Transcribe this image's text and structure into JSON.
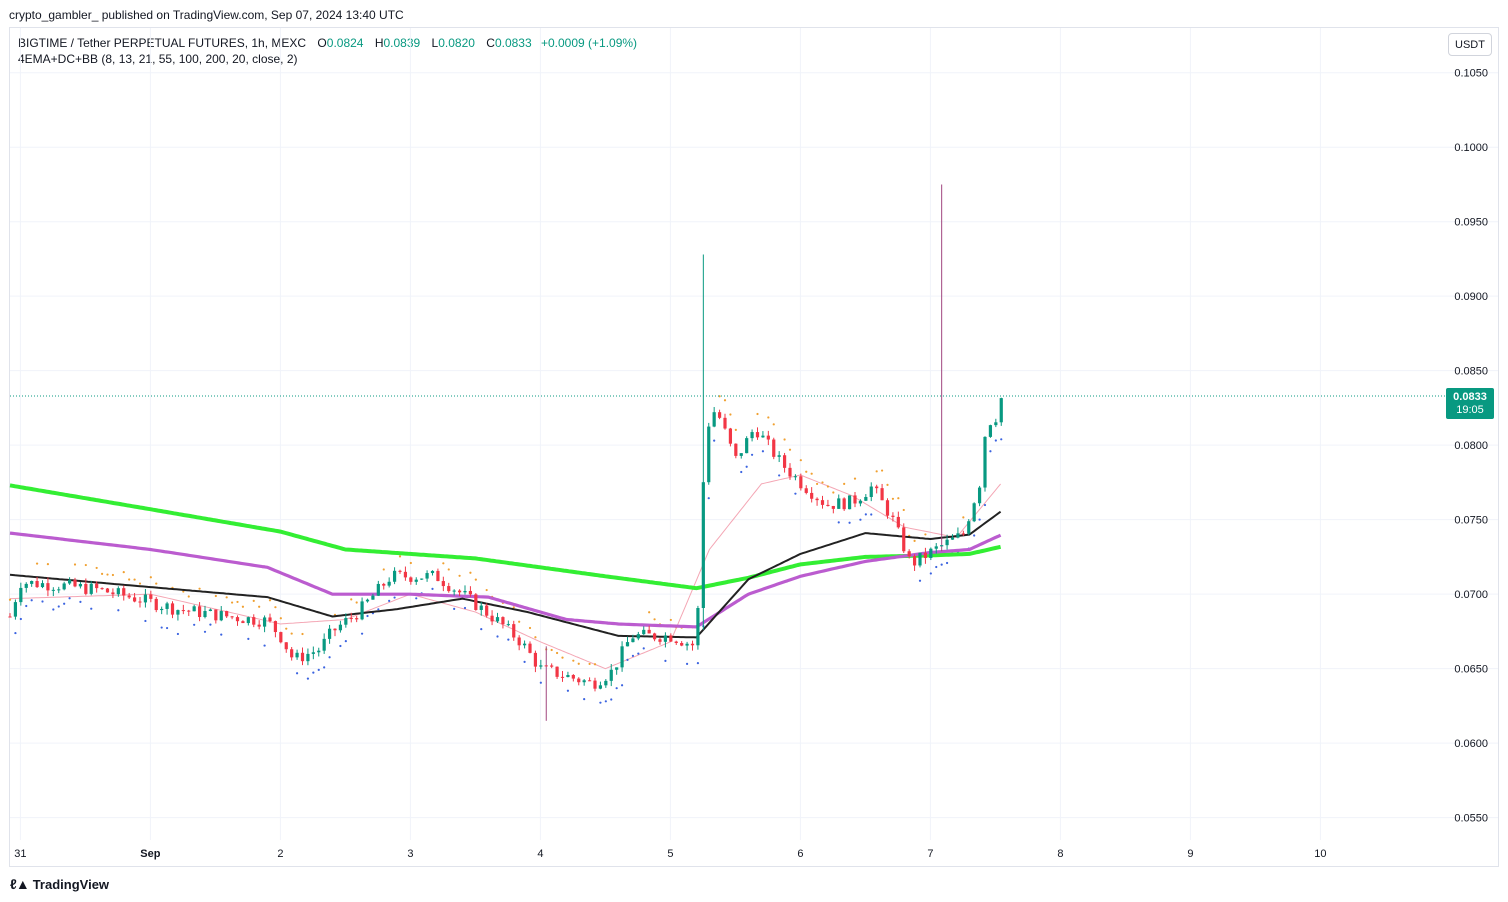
{
  "header": {
    "published": "crypto_gambler_ published on TradingView.com, Sep 07, 2024 13:40 UTC"
  },
  "legend": {
    "symbol": "BIGTIME / Tether PERPETUAL FUTURES, 1h, MEXC",
    "open_label": "O",
    "open": "0.0824",
    "high_label": "H",
    "high": "0.0839",
    "low_label": "L",
    "low": "0.0820",
    "close_label": "C",
    "close": "0.0833",
    "change": "+0.0009 (+1.09%)",
    "indicator": "4EMA+DC+BB (8, 13, 21, 55, 100, 200, 20, close, 2)"
  },
  "currency_button": "USDT",
  "price_label": {
    "price": "0.0833",
    "countdown": "19:05",
    "color": "#089981"
  },
  "footer": {
    "brand": "TradingView"
  },
  "colors": {
    "up": "#089981",
    "down": "#f23645",
    "ema200": "#33ee33",
    "ema100": "#bb5ccf",
    "ema55": "#222222",
    "bb": "#f4a6b4",
    "dc_up": "#3b63e0",
    "dc_dn": "#f0a030",
    "grid": "#f0f3fa",
    "current_line": "#089981"
  },
  "chart_data": {
    "type": "candlestick",
    "y_axis": {
      "range": [
        0.0535,
        0.108
      ],
      "ticks": [
        "0.1050",
        "0.1000",
        "0.0950",
        "0.0900",
        "0.0850",
        "0.0800",
        "0.0750",
        "0.0700",
        "0.0650",
        "0.0600",
        "0.0550"
      ]
    },
    "x_axis": {
      "unit": "days since Aug 30 2024 00:00",
      "range": [
        0.92,
        11.92
      ],
      "ticks": [
        {
          "t": 1.0,
          "label": "31"
        },
        {
          "t": 2.0,
          "label": "Sep"
        },
        {
          "t": 3.0,
          "label": "2"
        },
        {
          "t": 4.0,
          "label": "3"
        },
        {
          "t": 5.0,
          "label": "4"
        },
        {
          "t": 6.0,
          "label": "5"
        },
        {
          "t": 7.0,
          "label": "6"
        },
        {
          "t": 8.0,
          "label": "7"
        },
        {
          "t": 9.0,
          "label": "8"
        },
        {
          "t": 10.0,
          "label": "9"
        },
        {
          "t": 11.0,
          "label": "10"
        }
      ]
    },
    "price_path": [
      [
        0.92,
        0.0685
      ],
      [
        1.0,
        0.0708
      ],
      [
        1.3,
        0.0706
      ],
      [
        1.6,
        0.0703
      ],
      [
        1.9,
        0.0697
      ],
      [
        2.2,
        0.069
      ],
      [
        2.6,
        0.0685
      ],
      [
        2.9,
        0.0682
      ],
      [
        3.0,
        0.0672
      ],
      [
        3.1,
        0.0656
      ],
      [
        3.3,
        0.0663
      ],
      [
        3.4,
        0.0675
      ],
      [
        3.6,
        0.0688
      ],
      [
        3.85,
        0.0712
      ],
      [
        4.0,
        0.0712
      ],
      [
        4.2,
        0.0712
      ],
      [
        4.4,
        0.07
      ],
      [
        4.55,
        0.069
      ],
      [
        4.7,
        0.068
      ],
      [
        4.85,
        0.0668
      ],
      [
        5.0,
        0.065
      ],
      [
        5.2,
        0.0645
      ],
      [
        5.4,
        0.064
      ],
      [
        5.55,
        0.0648
      ],
      [
        5.7,
        0.0672
      ],
      [
        6.0,
        0.0672
      ],
      [
        6.2,
        0.0665
      ],
      [
        6.27,
        0.081
      ],
      [
        6.35,
        0.0825
      ],
      [
        6.5,
        0.079
      ],
      [
        6.65,
        0.0812
      ],
      [
        6.85,
        0.0788
      ],
      [
        7.0,
        0.0775
      ],
      [
        7.2,
        0.076
      ],
      [
        7.4,
        0.0762
      ],
      [
        7.55,
        0.0772
      ],
      [
        7.7,
        0.0752
      ],
      [
        7.85,
        0.072
      ],
      [
        8.0,
        0.0728
      ],
      [
        8.1,
        0.0733
      ],
      [
        8.25,
        0.074
      ],
      [
        8.38,
        0.0775
      ],
      [
        8.43,
        0.0815
      ],
      [
        8.5,
        0.0818
      ],
      [
        8.55,
        0.0833
      ]
    ],
    "wicks": [
      {
        "t": 6.25,
        "high": 0.0928,
        "low": 0.0676,
        "dir": "up"
      },
      {
        "t": 8.1,
        "high": 0.0975,
        "low": 0.073,
        "dir": "down"
      },
      {
        "t": 5.05,
        "high": 0.0665,
        "low": 0.0615,
        "dir": "down"
      }
    ],
    "series": [
      {
        "name": "EMA 200",
        "color": "#33ee33",
        "points": [
          [
            0.92,
            0.0773
          ],
          [
            2.0,
            0.0757
          ],
          [
            3.0,
            0.0742
          ],
          [
            3.5,
            0.073
          ],
          [
            4.5,
            0.0724
          ],
          [
            5.5,
            0.0712
          ],
          [
            6.2,
            0.0704
          ],
          [
            6.6,
            0.0711
          ],
          [
            7.0,
            0.072
          ],
          [
            7.5,
            0.0725
          ],
          [
            8.0,
            0.0726
          ],
          [
            8.3,
            0.0727
          ],
          [
            8.55,
            0.0732
          ]
        ]
      },
      {
        "name": "EMA 100",
        "color": "#bb5ccf",
        "points": [
          [
            0.92,
            0.0741
          ],
          [
            2.0,
            0.073
          ],
          [
            2.9,
            0.0718
          ],
          [
            3.4,
            0.07
          ],
          [
            4.0,
            0.07
          ],
          [
            4.6,
            0.0698
          ],
          [
            5.2,
            0.0683
          ],
          [
            5.6,
            0.068
          ],
          [
            6.2,
            0.0678
          ],
          [
            6.6,
            0.07
          ],
          [
            7.0,
            0.0712
          ],
          [
            7.5,
            0.0722
          ],
          [
            8.0,
            0.0728
          ],
          [
            8.3,
            0.073
          ],
          [
            8.55,
            0.074
          ]
        ]
      },
      {
        "name": "EMA 55",
        "color": "#222222",
        "points": [
          [
            0.92,
            0.0713
          ],
          [
            1.7,
            0.0707
          ],
          [
            2.9,
            0.0698
          ],
          [
            3.4,
            0.0685
          ],
          [
            3.9,
            0.069
          ],
          [
            4.4,
            0.0697
          ],
          [
            4.9,
            0.0688
          ],
          [
            5.6,
            0.0672
          ],
          [
            6.2,
            0.0671
          ],
          [
            6.6,
            0.071
          ],
          [
            7.0,
            0.0727
          ],
          [
            7.5,
            0.0741
          ],
          [
            8.0,
            0.0737
          ],
          [
            8.3,
            0.074
          ],
          [
            8.55,
            0.0756
          ]
        ]
      },
      {
        "name": "BB",
        "color": "#f4a6b4",
        "points": [
          [
            0.92,
            0.0697
          ],
          [
            2.0,
            0.07
          ],
          [
            3.0,
            0.068
          ],
          [
            3.5,
            0.0683
          ],
          [
            4.0,
            0.07
          ],
          [
            4.5,
            0.0688
          ],
          [
            5.0,
            0.0668
          ],
          [
            5.5,
            0.065
          ],
          [
            6.0,
            0.0668
          ],
          [
            6.3,
            0.073
          ],
          [
            6.7,
            0.0774
          ],
          [
            7.0,
            0.078
          ],
          [
            7.4,
            0.0766
          ],
          [
            7.8,
            0.0745
          ],
          [
            8.2,
            0.0738
          ],
          [
            8.55,
            0.0775
          ]
        ]
      }
    ]
  }
}
